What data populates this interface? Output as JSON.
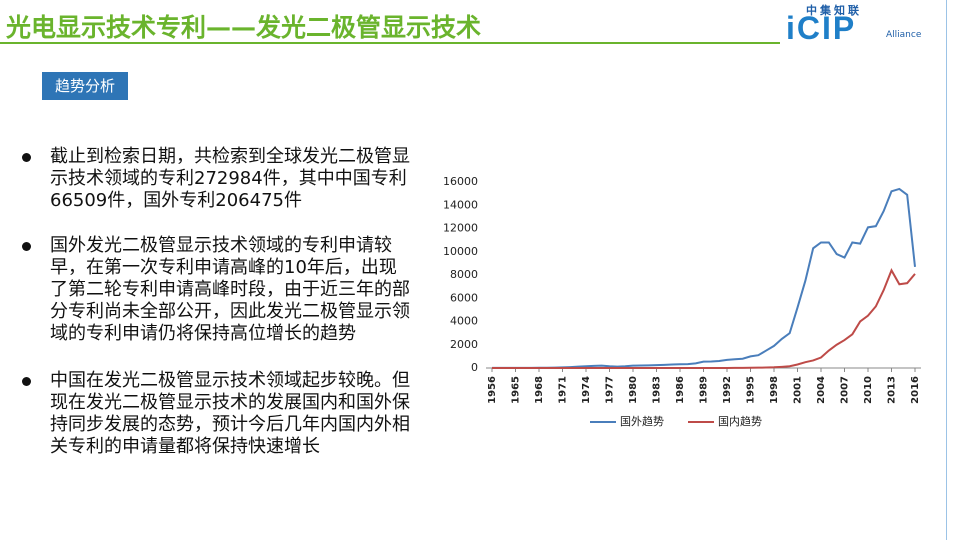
{
  "header": {
    "title": "光电显示技术专利——发光二极管显示技术",
    "logo": {
      "top": "中集知联",
      "main": "iCIP",
      "sub": "Alliance"
    }
  },
  "tag": "趋势分析",
  "bullets": [
    "截止到检索日期，共检索到全球发光二极管显示技术领域的专利272984件，其中中国专利66509件，国外专利206475件",
    "国外发光二极管显示技术领域的专利申请较早，在第一次专利申请高峰的10年后，出现了第二轮专利申请高峰时段，由于近三年的部分专利尚未全部公开，因此发光二极管显示领域的专利申请仍将保持高位增长的趋势",
    "中国在发光二极管显示技术领域起步较晚。但现在发光二极管显示技术的发展国内和国外保持同步发展的态势，预计今后几年内国内外相关专利的申请量都将保持快速增长"
  ],
  "chart_data": {
    "type": "line",
    "categories": [
      "1956",
      null,
      null,
      "1965",
      null,
      null,
      "1968",
      null,
      null,
      "1971",
      null,
      null,
      "1974",
      null,
      null,
      "1977",
      null,
      null,
      "1980",
      null,
      null,
      "1983",
      null,
      null,
      "1986",
      null,
      null,
      "1989",
      null,
      null,
      "1992",
      null,
      null,
      "1995",
      null,
      null,
      "1998",
      null,
      null,
      "2001",
      null,
      null,
      "2004",
      null,
      null,
      "2007",
      null,
      null,
      "2010",
      null,
      null,
      "2013",
      null,
      null,
      "2016"
    ],
    "series": [
      {
        "name": "国外趋势",
        "color": "#4a7ebb",
        "values": [
          10,
          10,
          10,
          10,
          10,
          10,
          20,
          20,
          30,
          50,
          80,
          120,
          150,
          180,
          200,
          150,
          120,
          150,
          200,
          220,
          230,
          250,
          270,
          300,
          320,
          330,
          400,
          550,
          560,
          600,
          700,
          750,
          800,
          1000,
          1100,
          1500,
          1900,
          2500,
          3000,
          5200,
          7500,
          10300,
          10800,
          10800,
          9800,
          9500,
          10800,
          10700,
          12100,
          12200,
          13500,
          15200,
          15400,
          14900,
          8700
        ]
      },
      {
        "name": "国内趋势",
        "color": "#be4b48",
        "values": [
          0,
          0,
          0,
          0,
          0,
          0,
          0,
          0,
          0,
          0,
          0,
          0,
          0,
          0,
          0,
          0,
          0,
          0,
          0,
          0,
          0,
          0,
          0,
          0,
          0,
          0,
          0,
          0,
          0,
          5,
          5,
          10,
          10,
          20,
          30,
          40,
          60,
          100,
          150,
          300,
          500,
          650,
          900,
          1500,
          2000,
          2400,
          2900,
          4000,
          4500,
          5300,
          6700,
          8400,
          7200,
          7300,
          8100
        ]
      }
    ],
    "ylim": [
      0,
      16000
    ],
    "yticks": [
      0,
      2000,
      4000,
      6000,
      8000,
      10000,
      12000,
      14000,
      16000
    ],
    "grid": false,
    "legend": "bottom"
  }
}
